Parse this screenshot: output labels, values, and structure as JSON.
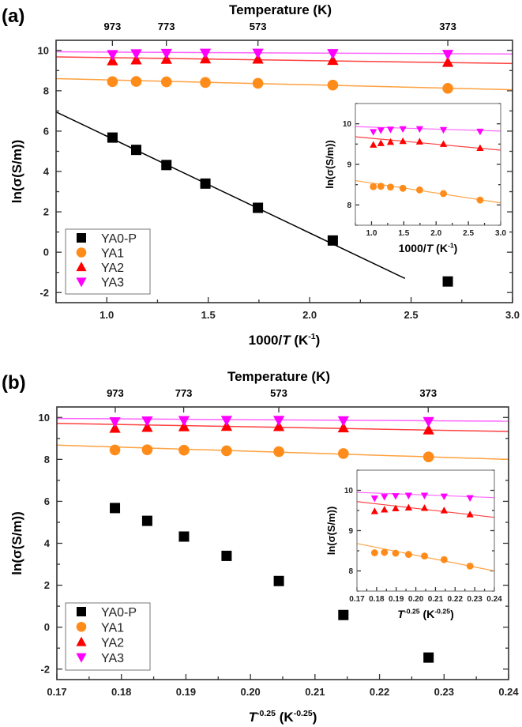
{
  "chart_data": [
    {
      "panel_label": "(a)",
      "type": "scatter",
      "xvar": "1000/T",
      "top_axis_title": "Temperature (K)",
      "top_ticks": [
        973,
        773,
        573,
        373
      ],
      "xlabel": {
        "pre": "1000/",
        "italic": "T",
        "mid": " (K",
        "sup": "-1",
        "post": ")"
      },
      "ylabel": "ln(σ(S/m))",
      "xlim": [
        0.75,
        3.0
      ],
      "ylim": [
        -2.5,
        10.5
      ],
      "xticks": [
        1.0,
        1.5,
        2.0,
        2.5,
        3.0
      ],
      "xtick_labels": [
        "1.0",
        "1.5",
        "2.0",
        "2.5",
        "3.0"
      ],
      "xminor": 0.25,
      "yticks": [
        -2,
        0,
        2,
        4,
        6,
        8,
        10
      ],
      "yminor": 1,
      "x": [
        1.028,
        1.145,
        1.294,
        1.486,
        1.745,
        2.114,
        2.681
      ],
      "series": [
        {
          "name": "YA0-P",
          "color": "#000000",
          "line_color": "#000000",
          "marker": "square",
          "y": [
            5.68,
            5.07,
            4.32,
            3.4,
            2.2,
            0.58,
            -1.45
          ],
          "fit": [
            [
              0.75,
              6.95
            ],
            [
              2.47,
              -1.3
            ]
          ]
        },
        {
          "name": "YA1",
          "color": "#ff8c1a",
          "line_color": "#ffa040",
          "marker": "circle",
          "y": [
            8.45,
            8.46,
            8.44,
            8.41,
            8.37,
            8.28,
            8.12
          ],
          "fit": [
            [
              0.75,
              8.6
            ],
            [
              3.0,
              8.05
            ]
          ]
        },
        {
          "name": "YA2",
          "color": "#ff0000",
          "line_color": "#ff4040",
          "marker": "triangle-up",
          "y": [
            9.48,
            9.52,
            9.55,
            9.57,
            9.56,
            9.5,
            9.4
          ],
          "fit": [
            [
              0.75,
              9.68
            ],
            [
              3.0,
              9.35
            ]
          ]
        },
        {
          "name": "YA3",
          "color": "#ff00ff",
          "line_color": "#ff66ff",
          "marker": "triangle-down",
          "y": [
            9.8,
            9.84,
            9.86,
            9.87,
            9.87,
            9.85,
            9.81
          ],
          "fit": [
            [
              0.75,
              9.93
            ],
            [
              3.0,
              9.82
            ]
          ]
        }
      ],
      "legend": "bottom-left",
      "inset": {
        "series": [
          "YA1",
          "YA2",
          "YA3"
        ],
        "xlim": [
          0.75,
          3.0
        ],
        "ylim": [
          7.5,
          10.5
        ],
        "xticks": [
          1.0,
          1.5,
          2.0,
          2.5,
          3.0
        ],
        "xtick_labels": [
          "1.0",
          "1.5",
          "2.0",
          "2.5",
          "3.0"
        ],
        "xminor": 0.25,
        "yticks": [
          8,
          9,
          10
        ],
        "yminor": 0.5,
        "xlabel": {
          "pre": "1000/",
          "italic": "T",
          "mid": " (K",
          "sup": "-1",
          "post": ")"
        },
        "ylabel": "ln(σ(S/m))"
      }
    },
    {
      "panel_label": "(b)",
      "type": "scatter",
      "xvar": "T^-0.25",
      "top_axis_title": "Temperature (K)",
      "top_ticks": [
        973,
        773,
        573,
        373
      ],
      "xlabel": {
        "pre": "",
        "italic": "T",
        "mid": "",
        "sup": "-0.25",
        "post": " (K",
        "sup2": "-0.25",
        "post2": ")"
      },
      "ylabel": "ln(σ(S/m))",
      "xlim": [
        0.17,
        0.24
      ],
      "ylim": [
        -2.5,
        10.5
      ],
      "xticks": [
        0.17,
        0.18,
        0.19,
        0.2,
        0.21,
        0.22,
        0.23,
        0.24
      ],
      "xtick_labels": [
        "0.17",
        "0.18",
        "0.19",
        "0.20",
        "0.21",
        "0.22",
        "0.23",
        "0.24"
      ],
      "xminor": 0.005,
      "yticks": [
        -2,
        0,
        2,
        4,
        6,
        8,
        10
      ],
      "yminor": 1,
      "x": [
        0.179,
        0.184,
        0.1897,
        0.1963,
        0.2044,
        0.2144,
        0.2276
      ],
      "series": [
        {
          "name": "YA0-P",
          "color": "#000000",
          "line_color": "#000000",
          "marker": "square",
          "y": [
            5.68,
            5.07,
            4.32,
            3.4,
            2.2,
            0.58,
            -1.45
          ],
          "fit": null
        },
        {
          "name": "YA1",
          "color": "#ff8c1a",
          "line_color": "#ffa040",
          "marker": "circle",
          "y": [
            8.45,
            8.46,
            8.44,
            8.41,
            8.37,
            8.28,
            8.12
          ],
          "fit": [
            [
              0.17,
              8.68
            ],
            [
              0.24,
              8.0
            ]
          ]
        },
        {
          "name": "YA2",
          "color": "#ff0000",
          "line_color": "#ff4040",
          "marker": "triangle-up",
          "y": [
            9.48,
            9.52,
            9.55,
            9.57,
            9.56,
            9.5,
            9.4
          ],
          "fit": [
            [
              0.17,
              9.72
            ],
            [
              0.24,
              9.33
            ]
          ]
        },
        {
          "name": "YA3",
          "color": "#ff00ff",
          "line_color": "#ff66ff",
          "marker": "triangle-down",
          "y": [
            9.8,
            9.84,
            9.86,
            9.87,
            9.87,
            9.85,
            9.81
          ],
          "fit": [
            [
              0.17,
              9.95
            ],
            [
              0.24,
              9.82
            ]
          ]
        }
      ],
      "legend": "bottom-left",
      "inset": {
        "series": [
          "YA1",
          "YA2",
          "YA3"
        ],
        "xlim": [
          0.17,
          0.24
        ],
        "ylim": [
          7.5,
          10.5
        ],
        "xticks": [
          0.17,
          0.18,
          0.19,
          0.2,
          0.21,
          0.22,
          0.23,
          0.24
        ],
        "xtick_labels": [
          "0.17",
          "0.18",
          "0.19",
          "0.20",
          "0.21",
          "0.22",
          "0.23",
          "0.24"
        ],
        "xminor": 0.005,
        "yticks": [
          8,
          9,
          10
        ],
        "yminor": 0.5,
        "xlabel": {
          "pre": "",
          "italic": "T",
          "mid": "",
          "sup": "-0.25",
          "post": " (K",
          "sup2": "-0.25",
          "post2": ")"
        },
        "ylabel": "ln(σ(S/m))"
      }
    }
  ]
}
